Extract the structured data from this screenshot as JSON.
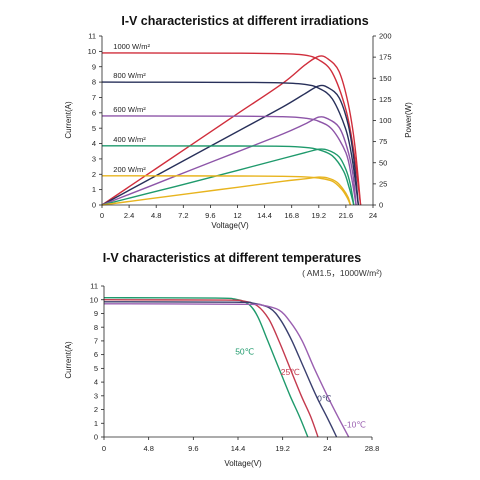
{
  "chart_data": [
    {
      "type": "line",
      "title": "I-V characteristics at different irradiations",
      "xlabel": "Voltage(V)",
      "ylabel": "Current(A)",
      "y2label": "Power(W)",
      "xlim": [
        0,
        24
      ],
      "ylim": [
        0,
        11
      ],
      "y2lim": [
        0,
        200
      ],
      "xticks": [
        "0",
        "2.4",
        "4.8",
        "7.2",
        "9.6",
        "12",
        "14.4",
        "16.8",
        "19.2",
        "21.6",
        "24"
      ],
      "yticks": [
        "0",
        "1",
        "2",
        "3",
        "4",
        "5",
        "6",
        "7",
        "8",
        "9",
        "10",
        "11"
      ],
      "y2ticks": [
        "0",
        "25",
        "50",
        "75",
        "100",
        "125",
        "150",
        "175",
        "200"
      ],
      "grid": false,
      "series": [
        {
          "name": "1000 W/m²",
          "color": "#d02e3c",
          "isc": 9.9,
          "iv": [
            [
              0,
              9.9
            ],
            [
              12,
              9.88
            ],
            [
              16,
              9.85
            ],
            [
              18,
              9.75
            ],
            [
              19.2,
              9.45
            ],
            [
              20.4,
              8.6
            ],
            [
              21.6,
              6.2
            ],
            [
              22.3,
              3.5
            ],
            [
              22.9,
              0
            ]
          ],
          "pv": [
            [
              0,
              0
            ],
            [
              4,
              36
            ],
            [
              8,
              72
            ],
            [
              12,
              108
            ],
            [
              16,
              144
            ],
            [
              18,
              166
            ],
            [
              19.2,
              176
            ],
            [
              20,
              173
            ],
            [
              21,
              158
            ],
            [
              21.8,
              120
            ],
            [
              22.4,
              70
            ],
            [
              22.9,
              0
            ]
          ]
        },
        {
          "name": "800 W/m²",
          "color": "#28305a",
          "isc": 8.0,
          "iv": [
            [
              0,
              8.0
            ],
            [
              12,
              7.98
            ],
            [
              16,
              7.95
            ],
            [
              18,
              7.85
            ],
            [
              19.2,
              7.6
            ],
            [
              20.4,
              6.9
            ],
            [
              21.6,
              4.9
            ],
            [
              22.2,
              2.8
            ],
            [
              22.7,
              0
            ]
          ],
          "pv": [
            [
              0,
              0
            ],
            [
              4,
              29
            ],
            [
              8,
              58
            ],
            [
              12,
              87
            ],
            [
              16,
              116
            ],
            [
              18,
              132
            ],
            [
              19.2,
              141
            ],
            [
              20,
              139
            ],
            [
              21,
              127
            ],
            [
              21.8,
              95
            ],
            [
              22.3,
              55
            ],
            [
              22.7,
              0
            ]
          ]
        },
        {
          "name": "600 W/m²",
          "color": "#8d55a8",
          "isc": 5.8,
          "iv": [
            [
              0,
              5.8
            ],
            [
              12,
              5.78
            ],
            [
              16,
              5.75
            ],
            [
              18,
              5.65
            ],
            [
              19.2,
              5.45
            ],
            [
              20.4,
              4.9
            ],
            [
              21.6,
              3.4
            ],
            [
              22.1,
              1.8
            ],
            [
              22.5,
              0
            ]
          ],
          "pv": [
            [
              0,
              0
            ],
            [
              4,
              21
            ],
            [
              8,
              42
            ],
            [
              12,
              63
            ],
            [
              16,
              84
            ],
            [
              18,
              96
            ],
            [
              19.2,
              104
            ],
            [
              20,
              102
            ],
            [
              21,
              92
            ],
            [
              21.7,
              68
            ],
            [
              22.2,
              38
            ],
            [
              22.5,
              0
            ]
          ]
        },
        {
          "name": "400 W/m²",
          "color": "#1f9a6c",
          "isc": 3.85,
          "iv": [
            [
              0,
              3.85
            ],
            [
              12,
              3.84
            ],
            [
              16,
              3.82
            ],
            [
              18,
              3.75
            ],
            [
              19.2,
              3.6
            ],
            [
              20.4,
              3.2
            ],
            [
              21.4,
              2.2
            ],
            [
              21.9,
              1.1
            ],
            [
              22.3,
              0
            ]
          ],
          "pv": [
            [
              0,
              0
            ],
            [
              4,
              13.5
            ],
            [
              8,
              27
            ],
            [
              12,
              41
            ],
            [
              16,
              55
            ],
            [
              18,
              62
            ],
            [
              19.2,
              66
            ],
            [
              20,
              65
            ],
            [
              21,
              57
            ],
            [
              21.6,
              42
            ],
            [
              22,
              24
            ],
            [
              22.3,
              0
            ]
          ]
        },
        {
          "name": "200 W/m²",
          "color": "#e8b41e",
          "isc": 1.9,
          "iv": [
            [
              0,
              1.9
            ],
            [
              12,
              1.89
            ],
            [
              16,
              1.87
            ],
            [
              18,
              1.83
            ],
            [
              19.2,
              1.75
            ],
            [
              20.4,
              1.55
            ],
            [
              21.2,
              1.05
            ],
            [
              21.7,
              0.5
            ],
            [
              22.0,
              0
            ]
          ],
          "pv": [
            [
              0,
              0
            ],
            [
              4,
              7
            ],
            [
              8,
              14
            ],
            [
              12,
              21
            ],
            [
              16,
              28
            ],
            [
              18,
              31
            ],
            [
              19.2,
              33
            ],
            [
              20,
              32
            ],
            [
              20.8,
              27
            ],
            [
              21.4,
              18
            ],
            [
              21.8,
              9
            ],
            [
              22.0,
              0
            ]
          ]
        }
      ]
    },
    {
      "type": "line",
      "title": "I-V characteristics at different temperatures",
      "subtitle": "( AM1.5，1000W/m²)",
      "xlabel": "Voltage(V)",
      "ylabel": "Current(A)",
      "xlim": [
        0,
        28.8
      ],
      "ylim": [
        0,
        11
      ],
      "xticks": [
        "0",
        "4.8",
        "9.6",
        "14.4",
        "19.2",
        "24",
        "28.8"
      ],
      "xtick_values": [
        0,
        4.8,
        9.6,
        14.4,
        19.2,
        24,
        28.8
      ],
      "yticks": [
        "0",
        "1",
        "2",
        "3",
        "4",
        "5",
        "6",
        "7",
        "8",
        "9",
        "10",
        "11"
      ],
      "grid": false,
      "series": [
        {
          "name": "50℃",
          "color": "#1f9a6c",
          "iv": [
            [
              0,
              10.15
            ],
            [
              12,
              10.12
            ],
            [
              14,
              10.05
            ],
            [
              15.5,
              9.7
            ],
            [
              16.5,
              8.8
            ],
            [
              17.6,
              7.0
            ],
            [
              18.8,
              5.0
            ],
            [
              20,
              3.0
            ],
            [
              21,
              1.5
            ],
            [
              21.9,
              0
            ]
          ]
        },
        {
          "name": "25℃",
          "color": "#c43a4e",
          "iv": [
            [
              0,
              10.0
            ],
            [
              13,
              9.97
            ],
            [
              15,
              9.9
            ],
            [
              16.5,
              9.55
            ],
            [
              17.7,
              8.6
            ],
            [
              18.8,
              7.0
            ],
            [
              20,
              5.0
            ],
            [
              21.2,
              3.0
            ],
            [
              22.2,
              1.5
            ],
            [
              23.0,
              0
            ]
          ]
        },
        {
          "name": "0℃",
          "color": "#3a3f6e",
          "iv": [
            [
              0,
              9.85
            ],
            [
              14,
              9.82
            ],
            [
              16,
              9.75
            ],
            [
              17.8,
              9.4
            ],
            [
              19,
              8.5
            ],
            [
              20.2,
              7.0
            ],
            [
              21.5,
              5.0
            ],
            [
              22.8,
              3.0
            ],
            [
              24,
              1.4
            ],
            [
              25.0,
              0
            ]
          ]
        },
        {
          "name": "-10℃",
          "color": "#9a5fb0",
          "iv": [
            [
              0,
              9.7
            ],
            [
              15,
              9.67
            ],
            [
              17,
              9.6
            ],
            [
              18.8,
              9.25
            ],
            [
              20,
              8.4
            ],
            [
              21.3,
              7.0
            ],
            [
              22.6,
              5.0
            ],
            [
              24,
              3.0
            ],
            [
              25.2,
              1.4
            ],
            [
              26.3,
              0
            ]
          ]
        }
      ]
    }
  ]
}
